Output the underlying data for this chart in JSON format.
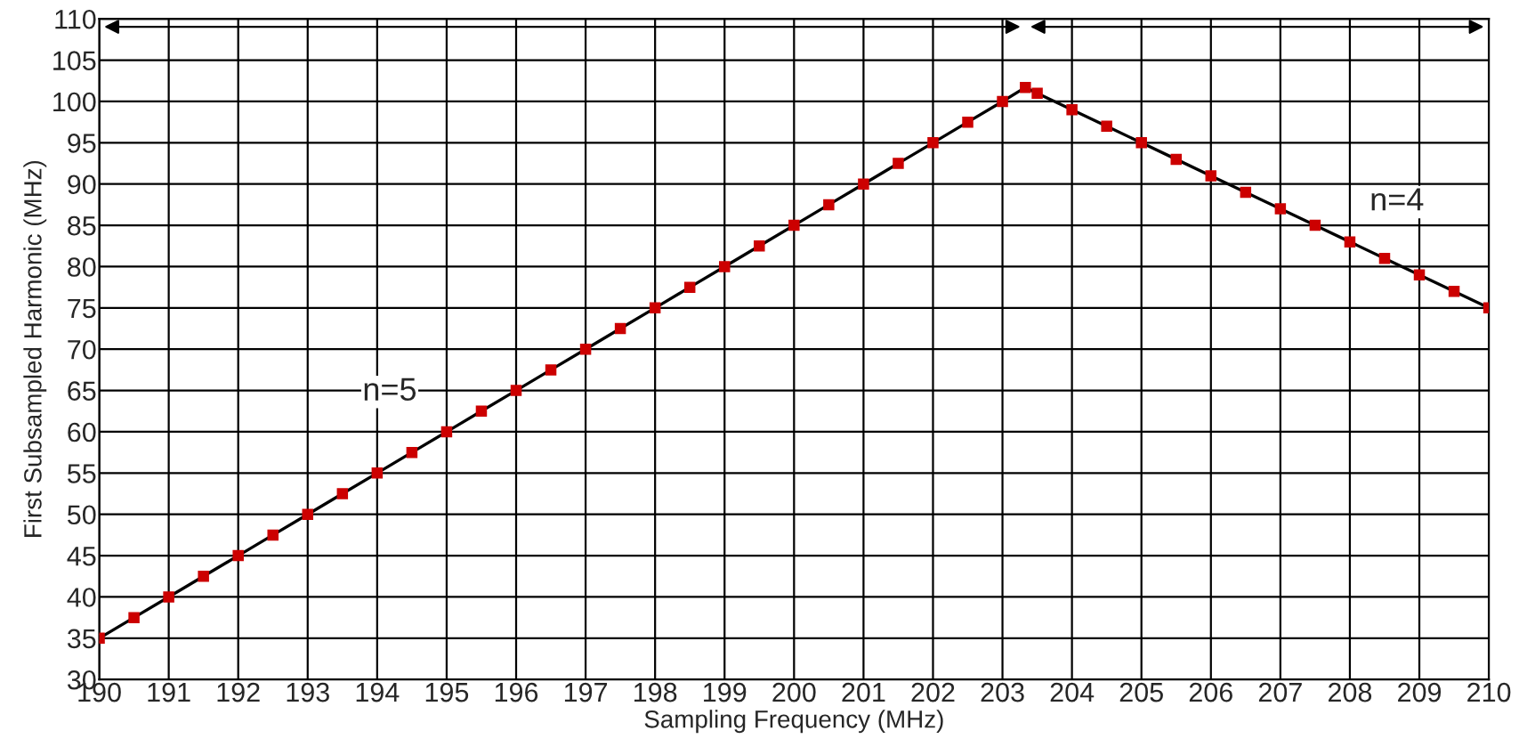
{
  "chart_data": {
    "type": "line",
    "xlabel": "Sampling Frequency (MHz)",
    "ylabel": "First Subsampled Harmonic (MHz)",
    "x": [
      190,
      190.5,
      191,
      191.5,
      192,
      192.5,
      193,
      193.5,
      194,
      194.5,
      195,
      195.5,
      196,
      196.5,
      197,
      197.5,
      198,
      198.5,
      199,
      199.5,
      200,
      200.5,
      201,
      201.5,
      202,
      202.5,
      203,
      203.33,
      203.5,
      204,
      204.5,
      205,
      205.5,
      206,
      206.5,
      207,
      207.5,
      208,
      208.5,
      209,
      209.5,
      210
    ],
    "series": [
      {
        "color": "#cc0000",
        "values": [
          35,
          37.5,
          40,
          42.5,
          45,
          47.5,
          50,
          52.5,
          55,
          57.5,
          60,
          62.5,
          65,
          67.5,
          70,
          72.5,
          75,
          77.5,
          80,
          82.5,
          85,
          87.5,
          90,
          92.5,
          95,
          97.5,
          100,
          101.7,
          101,
          99,
          97,
          95,
          93,
          91,
          89,
          87,
          85,
          83,
          81,
          79,
          77,
          75
        ]
      }
    ],
    "annotations": [
      "n=5",
      "n=4"
    ],
    "xlim": [
      190,
      210
    ],
    "xticks": [
      190,
      191,
      192,
      193,
      194,
      195,
      196,
      197,
      198,
      199,
      200,
      201,
      202,
      203,
      204,
      205,
      206,
      207,
      208,
      209,
      210
    ],
    "ylim": [
      30,
      110
    ],
    "yticks": [
      30,
      35,
      40,
      45,
      50,
      55,
      60,
      65,
      70,
      75,
      80,
      85,
      90,
      95,
      100,
      105,
      110
    ],
    "grid": true,
    "marker": "square",
    "line_style": "solid"
  }
}
